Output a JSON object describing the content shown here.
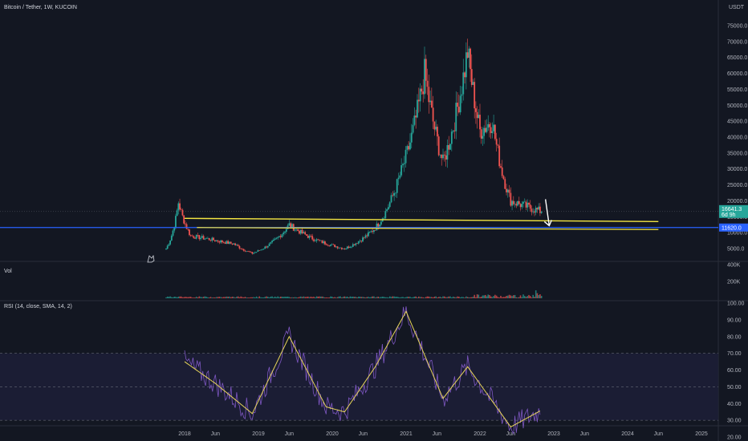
{
  "header": {
    "symbol_title": "Bitcoin / Tether, 1W, KUCOIN",
    "currency": "USDT",
    "vol_label": "Vol",
    "rsi_label": "RSI (14, close, SMA, 14, 2)"
  },
  "price_axis_labels": [
    "75000.0",
    "70000.0",
    "65000.0",
    "60000.0",
    "55000.0",
    "50000.0",
    "45000.0",
    "40000.0",
    "35000.0",
    "30000.0",
    "25000.0",
    "20000.0",
    "15000.0",
    "10000.0",
    "5000.0"
  ],
  "badges": {
    "current_price": "16641.3",
    "countdown": "6d 9h",
    "level": "11620.0"
  },
  "vol_axis_labels": [
    "400K",
    "200K"
  ],
  "rsi_axis_labels": [
    "100.00",
    "90.00",
    "80.00",
    "70.00",
    "60.00",
    "50.00",
    "40.00",
    "30.00",
    "20.00"
  ],
  "time_axis_labels": [
    "2018",
    "Jun",
    "2019",
    "Jun",
    "2020",
    "Jun",
    "2021",
    "Jun",
    "2022",
    "Jun",
    "2023",
    "Jun",
    "2024",
    "Jun",
    "2025"
  ],
  "colors": {
    "bg": "#131722",
    "up": "#26a69a",
    "down": "#ef5350",
    "yellow": "#f5e642",
    "blue": "#2962ff",
    "rsi": "#7e57c2",
    "rsi_ma": "#e8d65a",
    "band": "#1e1f3a"
  },
  "chart_data": [
    {
      "type": "candlestick",
      "title": "Bitcoin / Tether, 1W, KUCOIN",
      "ylabel": "USDT",
      "ylim": [
        2000,
        78000
      ],
      "key_points": [
        {
          "date": "2017-10",
          "price": 5000
        },
        {
          "date": "2017-12",
          "price": 19500
        },
        {
          "date": "2018-02",
          "price": 9000
        },
        {
          "date": "2018-05",
          "price": 8000
        },
        {
          "date": "2018-09",
          "price": 6500
        },
        {
          "date": "2018-12",
          "price": 3500
        },
        {
          "date": "2019-06",
          "price": 12500
        },
        {
          "date": "2019-10",
          "price": 8000
        },
        {
          "date": "2020-03",
          "price": 5000
        },
        {
          "date": "2020-08",
          "price": 11500
        },
        {
          "date": "2020-12",
          "price": 28000
        },
        {
          "date": "2021-04",
          "price": 60000
        },
        {
          "date": "2021-07",
          "price": 32000
        },
        {
          "date": "2021-11",
          "price": 67000
        },
        {
          "date": "2022-01",
          "price": 42000
        },
        {
          "date": "2022-03",
          "price": 45000
        },
        {
          "date": "2022-06",
          "price": 20000
        },
        {
          "date": "2022-11",
          "price": 16641.3
        }
      ],
      "horizontal_level": 11620.0,
      "trendline": {
        "from": {
          "date": "2018-01",
          "price": 14500
        },
        "to": {
          "date": "2024-06",
          "price": 13500
        }
      }
    },
    {
      "type": "bar",
      "title": "Vol",
      "ylim": [
        0,
        400000
      ]
    },
    {
      "type": "line",
      "title": "RSI (14, close, SMA, 14, 2)",
      "ylim": [
        20,
        100
      ],
      "bands": [
        30,
        50,
        70
      ],
      "key_points": [
        {
          "date": "2018-01",
          "rsi": 65
        },
        {
          "date": "2018-06",
          "rsi": 52
        },
        {
          "date": "2018-12",
          "rsi": 34
        },
        {
          "date": "2019-06",
          "rsi": 80
        },
        {
          "date": "2019-12",
          "rsi": 38
        },
        {
          "date": "2020-03",
          "rsi": 35
        },
        {
          "date": "2020-08",
          "rsi": 62
        },
        {
          "date": "2021-01",
          "rsi": 95
        },
        {
          "date": "2021-07",
          "rsi": 43
        },
        {
          "date": "2021-11",
          "rsi": 62
        },
        {
          "date": "2022-06",
          "rsi": 26
        },
        {
          "date": "2022-11",
          "rsi": 36
        }
      ]
    }
  ]
}
